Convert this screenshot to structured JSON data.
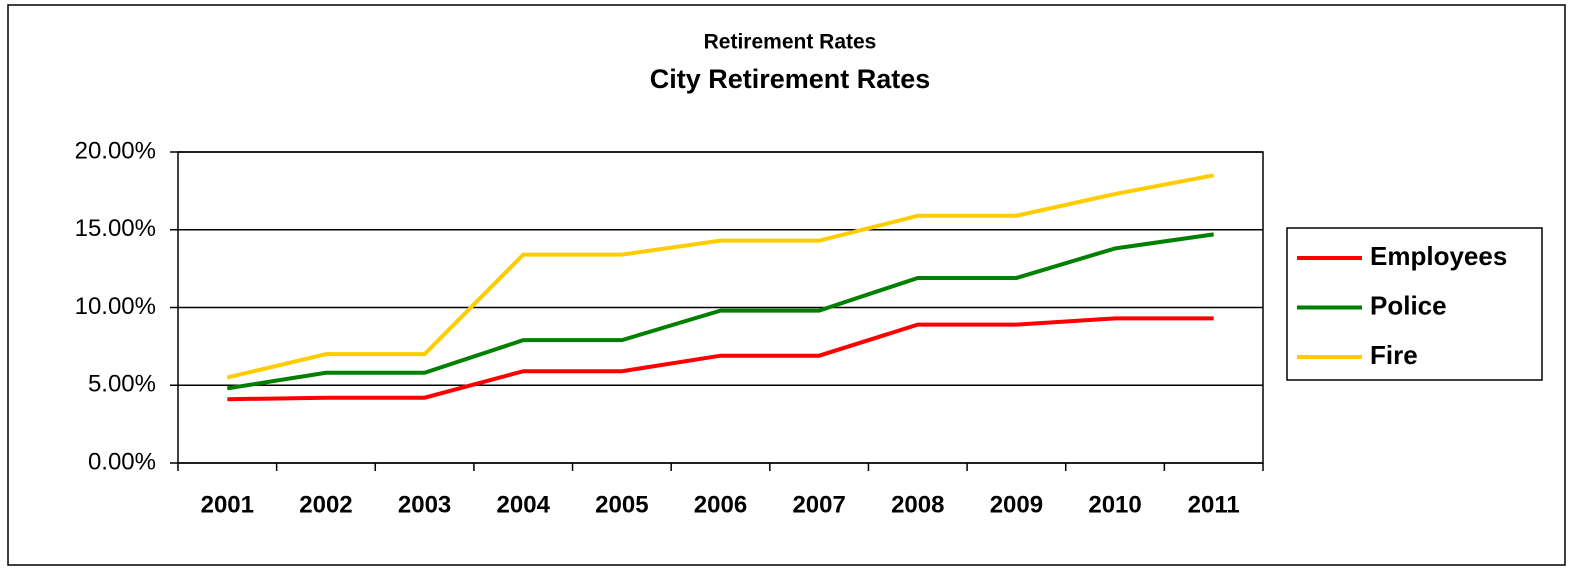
{
  "chart_data": {
    "type": "line",
    "title": "Retirement Rates",
    "subtitle": "City Retirement Rates",
    "categories": [
      "2001",
      "2002",
      "2003",
      "2004",
      "2005",
      "2006",
      "2007",
      "2008",
      "2009",
      "2010",
      "2011"
    ],
    "series": [
      {
        "name": "Employees",
        "color": "#ff0000",
        "values": [
          4.1,
          4.2,
          4.2,
          5.9,
          5.9,
          6.9,
          6.9,
          8.9,
          8.9,
          9.3,
          9.3
        ]
      },
      {
        "name": "Police",
        "color": "#008000",
        "values": [
          4.8,
          5.8,
          5.8,
          7.9,
          7.9,
          9.8,
          9.8,
          11.9,
          11.9,
          13.8,
          14.7
        ]
      },
      {
        "name": "Fire",
        "color": "#ffcc00",
        "values": [
          5.5,
          7.0,
          7.0,
          13.4,
          13.4,
          14.3,
          14.3,
          15.9,
          15.9,
          17.3,
          18.5
        ]
      }
    ],
    "ylim": [
      0,
      20
    ],
    "yticks": [
      {
        "value": 0,
        "label": "0.00%"
      },
      {
        "value": 5,
        "label": "5.00%"
      },
      {
        "value": 10,
        "label": "10.00%"
      },
      {
        "value": 15,
        "label": "15.00%"
      },
      {
        "value": 20,
        "label": "20.00%"
      }
    ],
    "grid": true,
    "legend": "right"
  }
}
